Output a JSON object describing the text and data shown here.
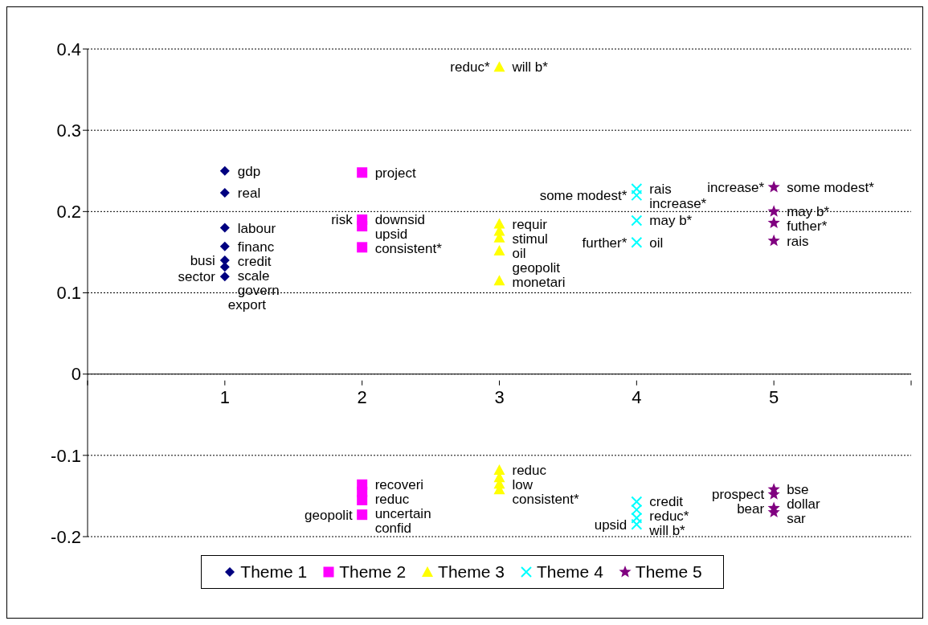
{
  "chart_data": {
    "type": "scatter",
    "xlim": [
      0,
      6
    ],
    "xticks": [
      {
        "value": 0,
        "label": null
      },
      1,
      2,
      3,
      4,
      5,
      {
        "value": 6,
        "label": null
      }
    ],
    "ylim": [
      -0.2,
      0.4
    ],
    "yticks": [
      -0.2,
      -0.1,
      0,
      0.1,
      0.2,
      0.3,
      0.4
    ],
    "grid": "y",
    "legend": "bottom",
    "series": [
      {
        "name": "Theme 1",
        "color": "#000080",
        "marker": "diamond",
        "x": [
          1,
          1,
          1,
          1,
          1,
          1,
          1
        ],
        "values": [
          0.25,
          0.223,
          0.18,
          0.157,
          0.14,
          0.132,
          0.12
        ]
      },
      {
        "name": "Theme 2",
        "color": "#ff00ff",
        "marker": "square",
        "x": [
          2,
          2,
          2,
          2,
          2,
          2,
          2,
          2
        ],
        "values": [
          0.248,
          0.19,
          0.182,
          0.156,
          -0.136,
          -0.145,
          -0.155,
          -0.173
        ]
      },
      {
        "name": "Theme 3",
        "color": "#ffff00",
        "marker": "triangle",
        "x": [
          3,
          3,
          3,
          3,
          3,
          3,
          3,
          3,
          3,
          3
        ],
        "values": [
          0.378,
          0.185,
          0.176,
          0.168,
          0.152,
          0.115,
          -0.118,
          -0.127,
          -0.142,
          -0.135
        ]
      },
      {
        "name": "Theme 4",
        "color": "#00ffff",
        "marker": "cross",
        "x": [
          4,
          4,
          4,
          4,
          4,
          4,
          4,
          4
        ],
        "values": [
          0.228,
          0.22,
          0.189,
          0.162,
          -0.157,
          -0.167,
          -0.177,
          -0.185
        ]
      },
      {
        "name": "Theme 5",
        "color": "#800080",
        "marker": "star",
        "x": [
          5,
          5,
          5,
          5,
          5,
          5,
          5,
          5
        ],
        "values": [
          0.23,
          0.2,
          0.186,
          0.164,
          -0.142,
          -0.148,
          -0.165,
          -0.17
        ]
      }
    ],
    "annotations": [
      {
        "text": "gdp",
        "x": 1,
        "y": 0.25
      },
      {
        "text": "real",
        "x": 1,
        "y": 0.223
      },
      {
        "text": "labour",
        "x": 1,
        "y": 0.18
      },
      {
        "text": "financ",
        "x": 1,
        "y": 0.157
      },
      {
        "text": "credit",
        "x": 1,
        "y": 0.14
      },
      {
        "text": "busi",
        "x": 1,
        "y": 0.14
      },
      {
        "text": "scale",
        "x": 1,
        "y": 0.132
      },
      {
        "text": "govern",
        "x": 1,
        "y": 0.12
      },
      {
        "text": "sector",
        "x": 1,
        "y": 0.12
      },
      {
        "text": "export",
        "x": 1,
        "y": 0.12
      },
      {
        "text": "project",
        "x": 2,
        "y": 0.248
      },
      {
        "text": "downsid",
        "x": 2,
        "y": 0.19
      },
      {
        "text": "risk",
        "x": 2,
        "y": 0.19
      },
      {
        "text": "upsid",
        "x": 2,
        "y": 0.182
      },
      {
        "text": "consistent*",
        "x": 2,
        "y": 0.156
      },
      {
        "text": "recoveri",
        "x": 2,
        "y": -0.136
      },
      {
        "text": "reduc",
        "x": 2,
        "y": -0.145
      },
      {
        "text": "uncertain",
        "x": 2,
        "y": -0.155
      },
      {
        "text": "confid",
        "x": 2,
        "y": -0.173
      },
      {
        "text": "geopolit",
        "x": 2,
        "y": -0.173
      },
      {
        "text": "will b*",
        "x": 3,
        "y": 0.378
      },
      {
        "text": "reduc*",
        "x": 3,
        "y": 0.378
      },
      {
        "text": "requir",
        "x": 3,
        "y": 0.185
      },
      {
        "text": "stimul",
        "x": 3,
        "y": 0.176
      },
      {
        "text": "oil",
        "x": 3,
        "y": 0.168
      },
      {
        "text": "geopolit",
        "x": 3,
        "y": 0.152
      },
      {
        "text": "monetari",
        "x": 3,
        "y": 0.115
      },
      {
        "text": "reduc",
        "x": 3,
        "y": -0.118
      },
      {
        "text": "low",
        "x": 3,
        "y": -0.127
      },
      {
        "text": "consistent*",
        "x": 3,
        "y": -0.142
      },
      {
        "text": "rais",
        "x": 4,
        "y": 0.228
      },
      {
        "text": "increase*",
        "x": 4,
        "y": 0.22
      },
      {
        "text": "some modest*",
        "x": 4,
        "y": 0.22
      },
      {
        "text": "may b*",
        "x": 4,
        "y": 0.189
      },
      {
        "text": "oil",
        "x": 4,
        "y": 0.162
      },
      {
        "text": "further*",
        "x": 4,
        "y": 0.162
      },
      {
        "text": "credit",
        "x": 4,
        "y": -0.157
      },
      {
        "text": "reduc*",
        "x": 4,
        "y": -0.167
      },
      {
        "text": "will b*",
        "x": 4,
        "y": -0.185
      },
      {
        "text": "upsid",
        "x": 4,
        "y": -0.185
      },
      {
        "text": "some modest*",
        "x": 5,
        "y": 0.23
      },
      {
        "text": "increase*",
        "x": 5,
        "y": 0.23
      },
      {
        "text": "may b*",
        "x": 5,
        "y": 0.2
      },
      {
        "text": "futher*",
        "x": 5,
        "y": 0.186
      },
      {
        "text": "rais",
        "x": 5,
        "y": 0.164
      },
      {
        "text": "bse",
        "x": 5,
        "y": -0.142
      },
      {
        "text": "dollar",
        "x": 5,
        "y": -0.148
      },
      {
        "text": "prospect",
        "x": 5,
        "y": -0.148
      },
      {
        "text": "sar",
        "x": 5,
        "y": -0.165
      },
      {
        "text": "bear",
        "x": 5,
        "y": -0.165
      }
    ]
  }
}
